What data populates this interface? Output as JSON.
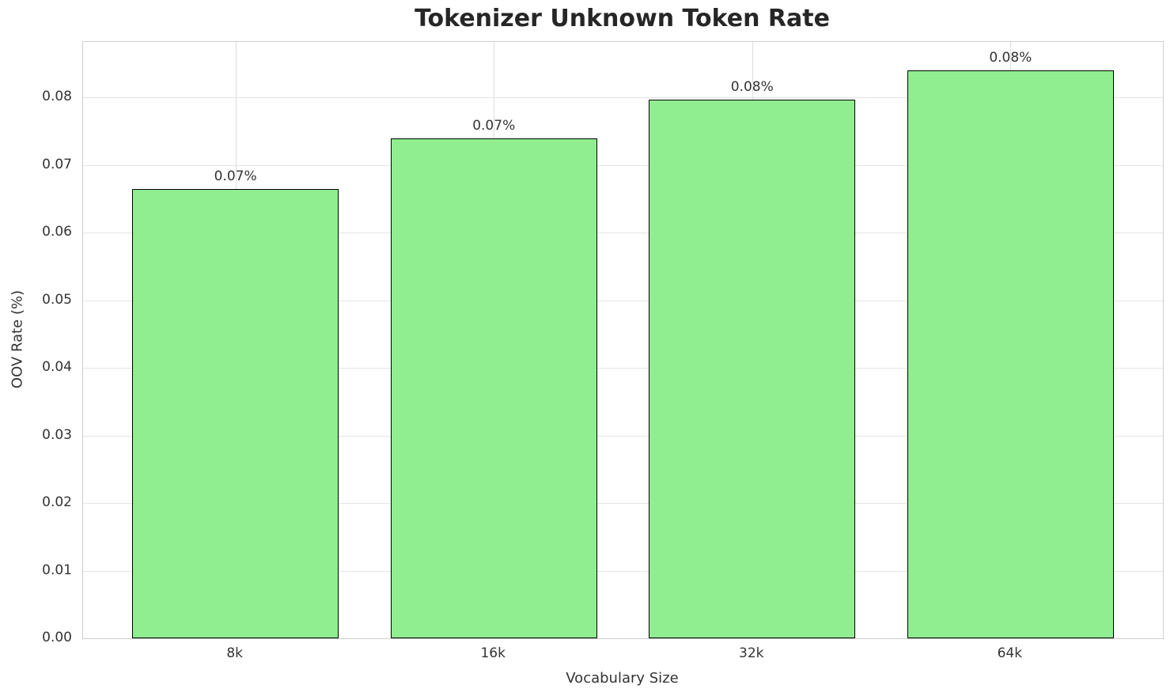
{
  "chart_data": {
    "type": "bar",
    "title": "Tokenizer Unknown Token Rate",
    "xlabel": "Vocabulary Size",
    "ylabel": "OOV Rate (%)",
    "categories": [
      "8k",
      "16k",
      "32k",
      "64k"
    ],
    "values": [
      0.0665,
      0.0739,
      0.0797,
      0.084
    ],
    "bar_labels": [
      "0.07%",
      "0.07%",
      "0.08%",
      "0.08%"
    ],
    "ytick_labels": [
      "0.00",
      "0.01",
      "0.02",
      "0.03",
      "0.04",
      "0.05",
      "0.06",
      "0.07",
      "0.08"
    ],
    "ytick_values": [
      0.0,
      0.01,
      0.02,
      0.03,
      0.04,
      0.05,
      0.06,
      0.07,
      0.08
    ],
    "ylim": [
      0,
      0.0882
    ],
    "grid": true,
    "legend_position": "none",
    "colors": {
      "bar_fill": "#90EE90",
      "bar_edge": "#000000",
      "grid_h": "#e4e4e4",
      "grid_v": "#dedede",
      "spine": "#cfcfcf",
      "title_text": "#262626",
      "tick_text": "#333333"
    }
  }
}
